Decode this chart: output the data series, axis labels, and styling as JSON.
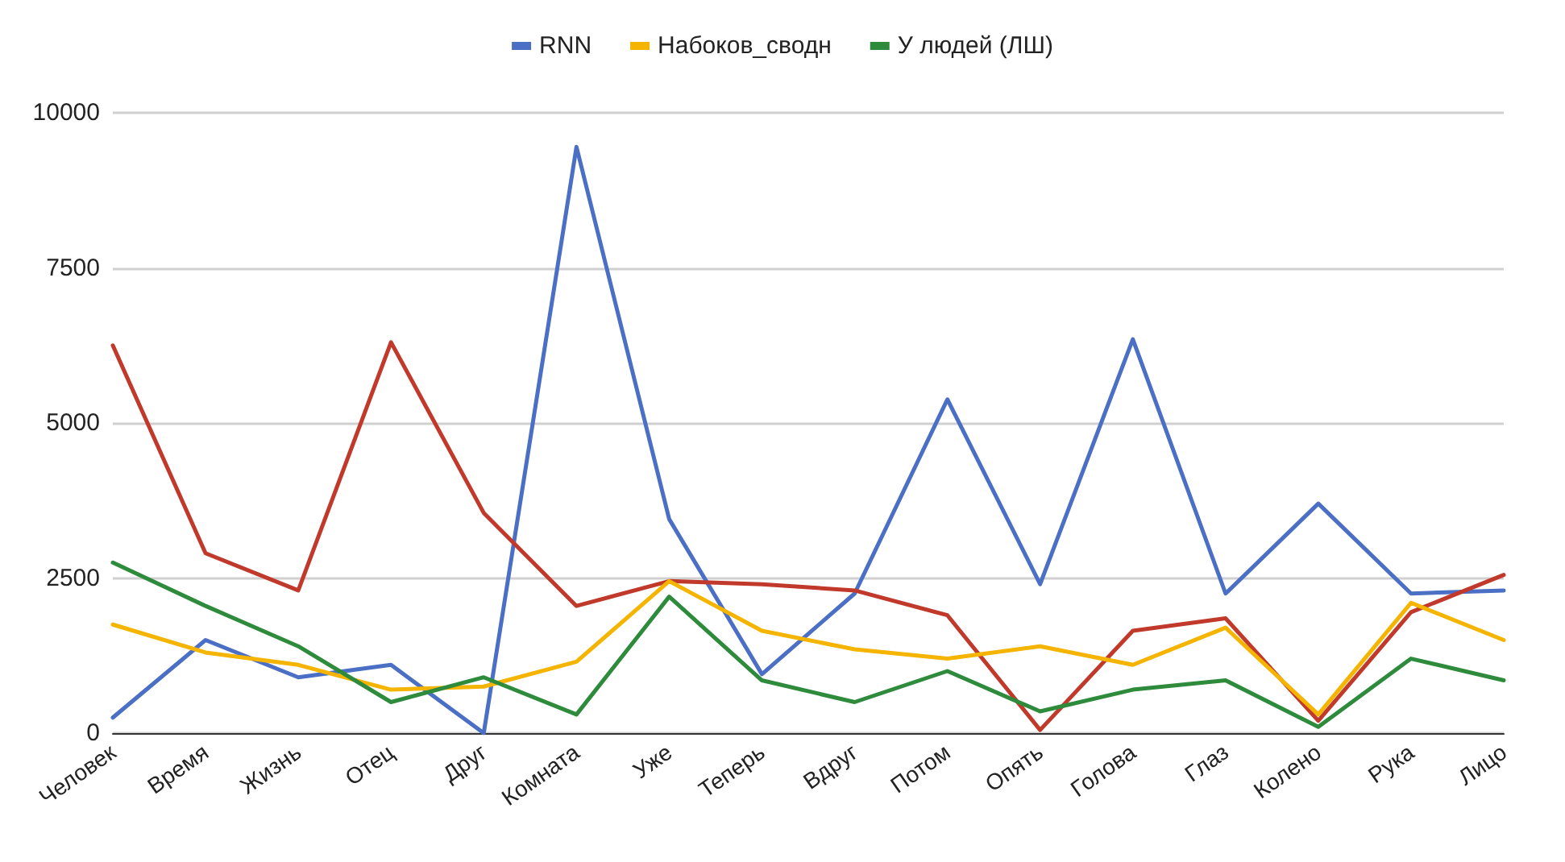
{
  "chart_data": {
    "type": "line",
    "categories": [
      "Человек",
      "Время",
      "Жизнь",
      "Отец",
      "Друг",
      "Комната",
      "Уже",
      "Теперь",
      "Вдруг",
      "Потом",
      "Опять",
      "Голова",
      "Глаз",
      "Колено",
      "Рука",
      "Лицо"
    ],
    "series": [
      {
        "name": "RNN",
        "color": "#4a6fc4",
        "values": [
          250,
          1500,
          900,
          1100,
          0,
          9450,
          3450,
          950,
          2250,
          5380,
          2400,
          6350,
          2250,
          3700,
          2250,
          2300
        ]
      },
      {
        "color": "#c0392b",
        "values": [
          6250,
          2900,
          2300,
          6300,
          3550,
          2050,
          2450,
          2400,
          2300,
          1900,
          50,
          1650,
          1850,
          200,
          1950,
          2550
        ]
      },
      {
        "name": "Набоков_сводн",
        "color": "#f4b400",
        "values": [
          1750,
          1300,
          1100,
          700,
          750,
          1150,
          2450,
          1650,
          1350,
          1200,
          1400,
          1100,
          1700,
          300,
          2100,
          1500
        ]
      },
      {
        "name": "У людей (ЛШ)",
        "color": "#2e8b3c",
        "values": [
          2750,
          2050,
          1400,
          500,
          900,
          300,
          2200,
          850,
          500,
          1000,
          350,
          700,
          850,
          100,
          1200,
          850
        ]
      }
    ],
    "ylim": [
      0,
      10000
    ],
    "yticks": [
      0,
      2500,
      5000,
      7500,
      10000
    ],
    "grid": "y",
    "legend": "top",
    "marker": "none",
    "line_style": "solid"
  }
}
